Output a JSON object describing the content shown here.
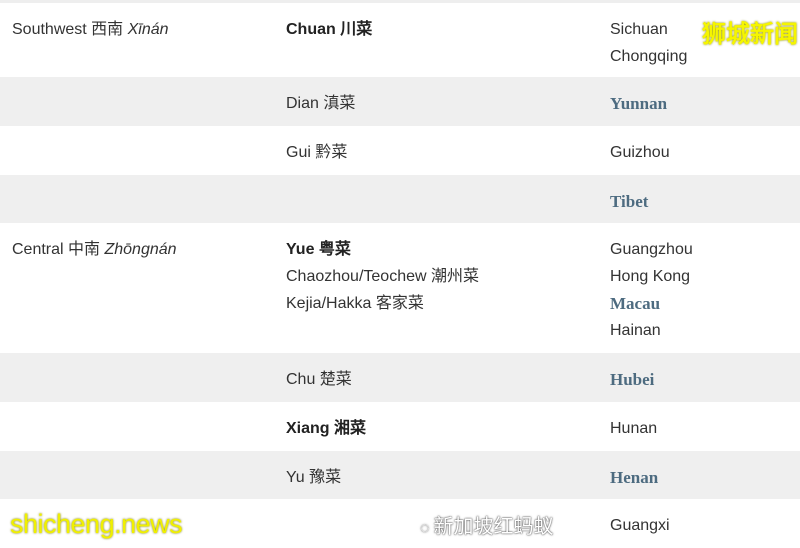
{
  "rows": [
    {
      "region": "Southwest 西南 ",
      "region_pinyin": "Xīnán",
      "cuisines": [
        {
          "text": "Chuan 川菜",
          "bold": true
        }
      ],
      "provinces": [
        {
          "text": "Sichuan",
          "link": false
        },
        {
          "text": "Chongqing",
          "link": false
        }
      ],
      "shade": false
    },
    {
      "region": "",
      "region_pinyin": "",
      "cuisines": [
        {
          "text": "Dian 滇菜",
          "bold": false
        }
      ],
      "provinces": [
        {
          "text": "Yunnan",
          "link": true
        }
      ],
      "shade": true
    },
    {
      "region": "",
      "region_pinyin": "",
      "cuisines": [
        {
          "text": "Gui 黔菜",
          "bold": false
        }
      ],
      "provinces": [
        {
          "text": "Guizhou",
          "link": false
        }
      ],
      "shade": false
    },
    {
      "region": "",
      "region_pinyin": "",
      "cuisines": [],
      "provinces": [
        {
          "text": "Tibet",
          "link": true
        }
      ],
      "shade": true
    },
    {
      "region": "Central 中南 ",
      "region_pinyin": "Zhōngnán",
      "cuisines": [
        {
          "text": "Yue 粤菜",
          "bold": true
        },
        {
          "text": "Chaozhou/Teochew 潮州菜",
          "bold": false
        },
        {
          "text": "Kejia/Hakka 客家菜",
          "bold": false
        }
      ],
      "provinces": [
        {
          "text": "Guangzhou",
          "link": false
        },
        {
          "text": "Hong Kong",
          "link": false
        },
        {
          "text": "Macau",
          "link": true
        },
        {
          "text": "Hainan",
          "link": false
        }
      ],
      "shade": false
    },
    {
      "region": "",
      "region_pinyin": "",
      "cuisines": [
        {
          "text": "Chu 楚菜",
          "bold": false
        }
      ],
      "provinces": [
        {
          "text": "Hubei",
          "link": true
        }
      ],
      "shade": true
    },
    {
      "region": "",
      "region_pinyin": "",
      "cuisines": [
        {
          "text": "Xiang 湘菜",
          "bold": true
        }
      ],
      "provinces": [
        {
          "text": "Hunan",
          "link": false
        }
      ],
      "shade": false
    },
    {
      "region": "",
      "region_pinyin": "",
      "cuisines": [
        {
          "text": "Yu 豫菜",
          "bold": false
        }
      ],
      "provinces": [
        {
          "text": "Henan",
          "link": true
        }
      ],
      "shade": true
    },
    {
      "region": "",
      "region_pinyin": "",
      "cuisines": [],
      "provinces": [
        {
          "text": "Guangxi",
          "link": false
        }
      ],
      "shade": false
    }
  ],
  "watermarks": {
    "top_right": "狮城新闻",
    "bottom_left": "shicheng.news",
    "wechat": "新加坡红蚂蚁",
    "wechat_icon": "wechat-icon"
  },
  "colors": {
    "link": "#4d6b80",
    "row_shade": "#efefef",
    "watermark": "#f5f500"
  }
}
